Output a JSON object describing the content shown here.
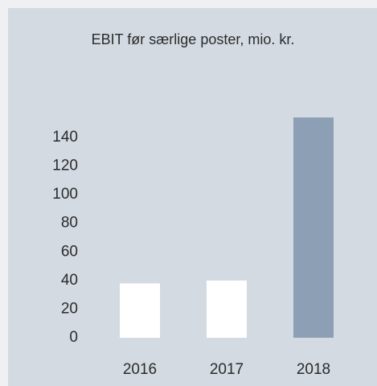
{
  "chart_data": {
    "type": "bar",
    "title": "EBIT før særlige poster, mio. kr.",
    "categories": [
      "2016",
      "2017",
      "2018"
    ],
    "values": [
      38,
      40,
      154
    ],
    "colors": [
      "#ffffff",
      "#ffffff",
      "#8c9fb4"
    ],
    "ylim": [
      0,
      160
    ],
    "yticks": [
      0,
      20,
      40,
      60,
      80,
      100,
      120,
      140
    ],
    "grid": false
  }
}
